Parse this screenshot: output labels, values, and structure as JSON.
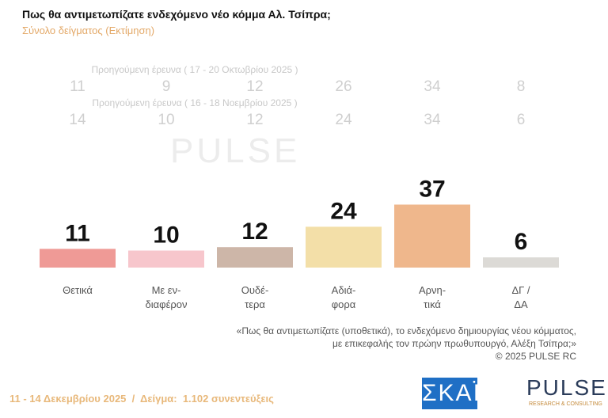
{
  "chart_data": {
    "type": "bar",
    "title": "Πως θα αντιμετωπίζατε ενδεχόμενο νέο κόμμα Αλ. Τσίπρα;",
    "subtitle": "Σύνολο δείγματος  (Εκτίμηση)",
    "categories": [
      "Θετικά",
      "Με εν-\nδιαφέρον",
      "Ουδέ-\nτερα",
      "Αδιά-\nφορα",
      "Αρνη-\nτικά",
      "ΔΓ /\nΔΑ"
    ],
    "values": [
      11,
      10,
      12,
      24,
      37,
      6
    ],
    "colors": [
      "#ef9a96",
      "#f7c6cc",
      "#cdb6a8",
      "#f3dfa8",
      "#efb78c",
      "#dcdad6"
    ],
    "previous_surveys": [
      {
        "label": "Προηγούμενη έρευνα ( 17 - 20 Οκτωβρίου 2025 )",
        "values": [
          11,
          9,
          12,
          26,
          34,
          8
        ]
      },
      {
        "label": "Προηγούμενη έρευνα ( 16 - 18 Νοεμβρίου 2025 )",
        "values": [
          14,
          10,
          12,
          24,
          34,
          6
        ]
      }
    ]
  },
  "note": [
    "«Πως θα αντιμετωπίζατε (υποθετικά), το ενδεχόμενο δημιουργίας νέου κόμματος,",
    "με επικεφαλής τον πρώην πρωθυπουργό, Αλέξη Τσίπρα;»"
  ],
  "copyright": "©  2025  PULSE RC",
  "footer": "11 - 14 Δεκεμβρίου 2025  /  Δείγμα:  1.102 συνεντεύξεις",
  "logos": {
    "skai": "ΣΚΑΪ",
    "pulse": "PULSE",
    "pulse_tag": "RESEARCH & CONSULTING"
  }
}
